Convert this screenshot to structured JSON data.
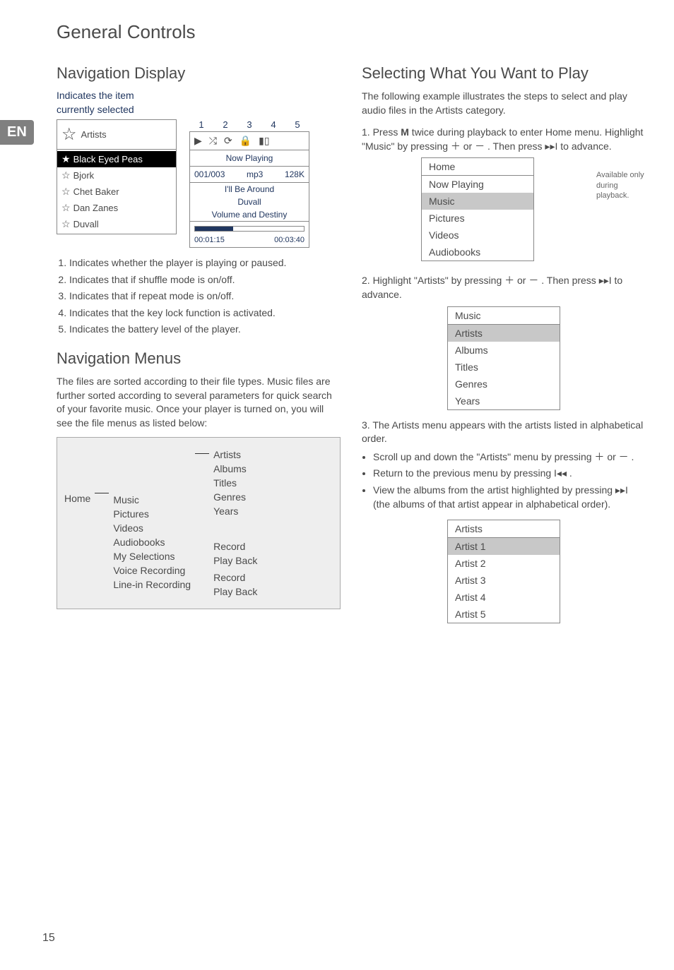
{
  "lang_tab": "EN",
  "page_title": "General Controls",
  "page_number": "15",
  "left": {
    "h_nav_display": "Navigation Display",
    "caption_1": "Indicates the item",
    "caption_2": "currently selected",
    "ticks": [
      "1",
      "2",
      "3",
      "4",
      "5"
    ],
    "artist_header": "Artists",
    "artist_rows": [
      {
        "label": "Black Eyed Peas",
        "selected": true,
        "star": "★"
      },
      {
        "label": "Bjork",
        "selected": false,
        "star": "☆"
      },
      {
        "label": "Chet Baker",
        "selected": false,
        "star": "☆"
      },
      {
        "label": "Dan Zanes",
        "selected": false,
        "star": "☆"
      },
      {
        "label": "Duvall",
        "selected": false,
        "star": "☆"
      }
    ],
    "np": {
      "title": "Now Playing",
      "track_pos": "001/003",
      "fmt": "mp3",
      "rate": "128K",
      "line1": "I'll Be Around",
      "line2": "Duvall",
      "line3": "Volume and Destiny",
      "t_elapsed": "00:01:15",
      "t_total": "00:03:40"
    },
    "indicator_list": [
      "Indicates whether the player is playing or paused.",
      "Indicates that if shuffle mode is on/off.",
      "Indicates that if repeat mode is on/off.",
      "Indicates that the key lock function is activated.",
      "Indicates the battery level of the player."
    ],
    "h_nav_menus": "Navigation Menus",
    "nav_menus_para": "The files are sorted according to their file types. Music files are further sorted according to several parameters for quick search of your favorite music. Once your player is turned on, you will see the file menus as listed below:",
    "tree": {
      "home": "Home",
      "col2": [
        "Music",
        "Pictures",
        "Videos",
        "Audiobooks",
        "My Selections",
        "Voice Recording",
        "Line-in Recording"
      ],
      "col3a": [
        "Artists",
        "Albums",
        "Titles",
        "Genres",
        "Years"
      ],
      "col3b": [
        "Record",
        "Play Back"
      ],
      "col3c": [
        "Record",
        "Play Back"
      ]
    }
  },
  "right": {
    "h_select": "Selecting What You Want to Play",
    "intro": "The following example illustrates the steps to select and play audio files in the Artists category.",
    "step1_a": "1. Press ",
    "step1_b": "M",
    "step1_c": " twice during playback to enter Home menu. Highlight \"Music\" by pressing  ＋  or  －  . Then press  ▸▸I  to advance.",
    "side_note": "Available only during playback.",
    "home_menu": {
      "hdr": "Home",
      "items": [
        "Now Playing",
        "Music",
        "Pictures",
        "Videos",
        "Audiobooks"
      ],
      "dim_index": 1
    },
    "step2": "2. Highlight \"Artists\" by pressing  ＋  or  －  . Then press  ▸▸I  to advance.",
    "music_menu": {
      "hdr": "Music",
      "items": [
        "Artists",
        "Albums",
        "Titles",
        "Genres",
        "Years"
      ],
      "dim_index": 0
    },
    "step3": "3. The Artists menu appears with the artists listed in alphabetical order.",
    "bullets": [
      "Scroll up and down the \"Artists\" menu by pressing  ＋  or  －  .",
      "Return to the previous menu by pressing  I◂◂ .",
      "View the albums from the artist highlighted by pressing  ▸▸I  (the albums of that artist appear in alphabetical order)."
    ],
    "artists_menu": {
      "hdr": "Artists",
      "items": [
        "Artist 1",
        "Artist 2",
        "Artist 3",
        "Artist 4",
        "Artist 5"
      ],
      "dim_index": 0
    }
  }
}
